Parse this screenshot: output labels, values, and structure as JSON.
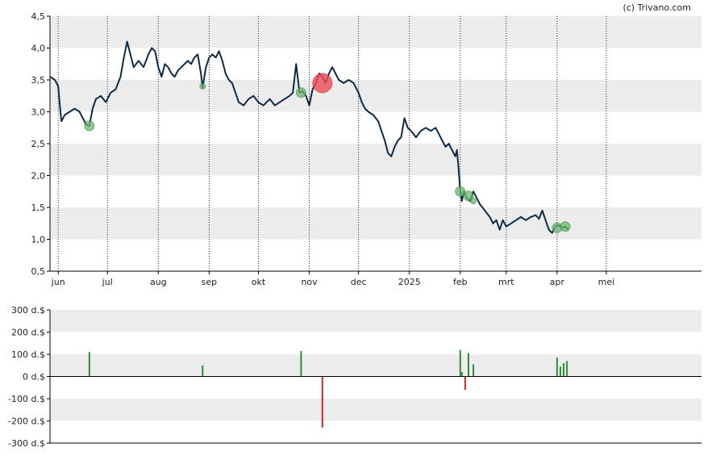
{
  "watermark": "(c) Trivano.com",
  "colors": {
    "band": "#ececec",
    "line": "#0d2b45",
    "buy": "#2e8b3a",
    "buy_marker": "#6fb56f",
    "sell": "#d7262c",
    "sell_marker": "#ee4b55",
    "axis": "#000000"
  },
  "chart_data": [
    {
      "type": "line",
      "title": "",
      "xlabel": "",
      "ylabel": "",
      "ylim": [
        0.5,
        4.5
      ],
      "yticks": [
        {
          "value": 4.5,
          "label": "4,5"
        },
        {
          "value": 4.0,
          "label": "4,0"
        },
        {
          "value": 3.5,
          "label": "3,5"
        },
        {
          "value": 3.0,
          "label": "3,0"
        },
        {
          "value": 2.5,
          "label": "2,5"
        },
        {
          "value": 2.0,
          "label": "2,0"
        },
        {
          "value": 1.5,
          "label": "1,5"
        },
        {
          "value": 1.0,
          "label": "1,0"
        },
        {
          "value": 0.5,
          "label": "0,5"
        }
      ],
      "x_range": [
        0,
        397
      ],
      "xticks": [
        {
          "day": 5,
          "label": "jun"
        },
        {
          "day": 35,
          "label": "jul"
        },
        {
          "day": 66,
          "label": "aug"
        },
        {
          "day": 97,
          "label": "sep"
        },
        {
          "day": 127,
          "label": "okt"
        },
        {
          "day": 158,
          "label": "nov"
        },
        {
          "day": 188,
          "label": "dec"
        },
        {
          "day": 219,
          "label": "2025"
        },
        {
          "day": 250,
          "label": "feb"
        },
        {
          "day": 278,
          "label": "mrt"
        },
        {
          "day": 309,
          "label": "apr"
        },
        {
          "day": 339,
          "label": "mei"
        }
      ],
      "grid": "vertical dotted at month starts, alternating horizontal bands",
      "series": [
        {
          "points": [
            [
              0,
              3.55
            ],
            [
              3,
              3.5
            ],
            [
              5,
              3.4
            ],
            [
              6,
              3.1
            ],
            [
              7,
              2.85
            ],
            [
              9,
              2.95
            ],
            [
              12,
              3.0
            ],
            [
              15,
              3.05
            ],
            [
              18,
              3.0
            ],
            [
              20,
              2.9
            ],
            [
              22,
              2.8
            ],
            [
              24,
              2.78
            ],
            [
              26,
              3.05
            ],
            [
              28,
              3.2
            ],
            [
              31,
              3.25
            ],
            [
              34,
              3.15
            ],
            [
              37,
              3.3
            ],
            [
              40,
              3.35
            ],
            [
              43,
              3.55
            ],
            [
              45,
              3.85
            ],
            [
              47,
              4.1
            ],
            [
              49,
              3.9
            ],
            [
              51,
              3.7
            ],
            [
              54,
              3.8
            ],
            [
              57,
              3.7
            ],
            [
              60,
              3.9
            ],
            [
              62,
              4.0
            ],
            [
              64,
              3.95
            ],
            [
              66,
              3.7
            ],
            [
              68,
              3.55
            ],
            [
              70,
              3.75
            ],
            [
              72,
              3.7
            ],
            [
              74,
              3.6
            ],
            [
              76,
              3.55
            ],
            [
              78,
              3.65
            ],
            [
              80,
              3.7
            ],
            [
              82,
              3.75
            ],
            [
              84,
              3.8
            ],
            [
              86,
              3.75
            ],
            [
              88,
              3.85
            ],
            [
              90,
              3.9
            ],
            [
              92,
              3.6
            ],
            [
              93,
              3.38
            ],
            [
              95,
              3.7
            ],
            [
              97,
              3.85
            ],
            [
              99,
              3.9
            ],
            [
              101,
              3.85
            ],
            [
              103,
              3.95
            ],
            [
              105,
              3.8
            ],
            [
              107,
              3.6
            ],
            [
              109,
              3.5
            ],
            [
              111,
              3.45
            ],
            [
              113,
              3.3
            ],
            [
              115,
              3.15
            ],
            [
              118,
              3.1
            ],
            [
              121,
              3.2
            ],
            [
              124,
              3.25
            ],
            [
              127,
              3.15
            ],
            [
              130,
              3.1
            ],
            [
              132,
              3.15
            ],
            [
              134,
              3.2
            ],
            [
              137,
              3.1
            ],
            [
              140,
              3.15
            ],
            [
              143,
              3.2
            ],
            [
              146,
              3.25
            ],
            [
              148,
              3.3
            ],
            [
              150,
              3.75
            ],
            [
              152,
              3.3
            ],
            [
              154,
              3.32
            ],
            [
              156,
              3.25
            ],
            [
              158,
              3.1
            ],
            [
              160,
              3.35
            ],
            [
              162,
              3.45
            ],
            [
              164,
              3.6
            ],
            [
              166,
              3.55
            ],
            [
              168,
              3.45
            ],
            [
              170,
              3.6
            ],
            [
              172,
              3.7
            ],
            [
              174,
              3.6
            ],
            [
              176,
              3.5
            ],
            [
              179,
              3.45
            ],
            [
              182,
              3.5
            ],
            [
              185,
              3.45
            ],
            [
              188,
              3.3
            ],
            [
              190,
              3.15
            ],
            [
              192,
              3.05
            ],
            [
              194,
              3.0
            ],
            [
              197,
              2.95
            ],
            [
              200,
              2.85
            ],
            [
              202,
              2.7
            ],
            [
              204,
              2.55
            ],
            [
              206,
              2.35
            ],
            [
              208,
              2.3
            ],
            [
              210,
              2.45
            ],
            [
              212,
              2.55
            ],
            [
              214,
              2.6
            ],
            [
              216,
              2.9
            ],
            [
              218,
              2.75
            ],
            [
              220,
              2.7
            ],
            [
              223,
              2.6
            ],
            [
              226,
              2.7
            ],
            [
              229,
              2.75
            ],
            [
              232,
              2.7
            ],
            [
              235,
              2.75
            ],
            [
              237,
              2.65
            ],
            [
              239,
              2.55
            ],
            [
              241,
              2.45
            ],
            [
              243,
              2.5
            ],
            [
              245,
              2.4
            ],
            [
              247,
              2.3
            ],
            [
              248,
              2.4
            ],
            [
              249,
              2.1
            ],
            [
              250,
              1.75
            ],
            [
              251,
              1.6
            ],
            [
              252,
              1.75
            ],
            [
              254,
              1.65
            ],
            [
              256,
              1.6
            ],
            [
              258,
              1.75
            ],
            [
              260,
              1.65
            ],
            [
              262,
              1.55
            ],
            [
              265,
              1.45
            ],
            [
              268,
              1.35
            ],
            [
              270,
              1.25
            ],
            [
              272,
              1.3
            ],
            [
              274,
              1.15
            ],
            [
              276,
              1.3
            ],
            [
              278,
              1.2
            ],
            [
              281,
              1.25
            ],
            [
              284,
              1.3
            ],
            [
              287,
              1.35
            ],
            [
              290,
              1.3
            ],
            [
              293,
              1.35
            ],
            [
              296,
              1.38
            ],
            [
              298,
              1.32
            ],
            [
              300,
              1.45
            ],
            [
              302,
              1.3
            ],
            [
              304,
              1.15
            ],
            [
              306,
              1.1
            ],
            [
              308,
              1.2
            ],
            [
              310,
              1.22
            ],
            [
              312,
              1.18
            ],
            [
              314,
              1.2
            ],
            [
              316,
              1.15
            ]
          ]
        }
      ],
      "trade_markers": [
        {
          "day": 24,
          "value": 2.78,
          "kind": "buy",
          "size": "small"
        },
        {
          "day": 93,
          "value": 3.4,
          "kind": "buy",
          "size": "tiny"
        },
        {
          "day": 153,
          "value": 3.3,
          "kind": "buy",
          "size": "small"
        },
        {
          "day": 166,
          "value": 3.45,
          "kind": "sell",
          "size": "large"
        },
        {
          "day": 250,
          "value": 1.75,
          "kind": "buy",
          "size": "small"
        },
        {
          "day": 255,
          "value": 1.68,
          "kind": "buy",
          "size": "small"
        },
        {
          "day": 258,
          "value": 1.6,
          "kind": "buy",
          "size": "tiny"
        },
        {
          "day": 309,
          "value": 1.18,
          "kind": "buy",
          "size": "small"
        },
        {
          "day": 314,
          "value": 1.2,
          "kind": "buy",
          "size": "small"
        }
      ]
    },
    {
      "type": "bar",
      "title": "",
      "ylabel": "",
      "ylim": [
        -300,
        300
      ],
      "yticks": [
        {
          "value": 300,
          "label": "300 d.$"
        },
        {
          "value": 200,
          "label": "200 d.$"
        },
        {
          "value": 100,
          "label": "100 d.$"
        },
        {
          "value": 0,
          "label": "0 d.$"
        },
        {
          "value": -100,
          "label": "-100 d.$"
        },
        {
          "value": -200,
          "label": "-200 d.$"
        },
        {
          "value": -300,
          "label": "-300 d.$"
        }
      ],
      "bars": [
        {
          "day": 24,
          "value": 110
        },
        {
          "day": 93,
          "value": 50
        },
        {
          "day": 153,
          "value": 115
        },
        {
          "day": 166,
          "value": -230
        },
        {
          "day": 250,
          "value": 120
        },
        {
          "day": 251,
          "value": 20
        },
        {
          "day": 253,
          "value": -60
        },
        {
          "day": 255,
          "value": 105
        },
        {
          "day": 258,
          "value": 55
        },
        {
          "day": 309,
          "value": 85
        },
        {
          "day": 311,
          "value": 45
        },
        {
          "day": 313,
          "value": 60
        },
        {
          "day": 315,
          "value": 70
        }
      ]
    }
  ]
}
